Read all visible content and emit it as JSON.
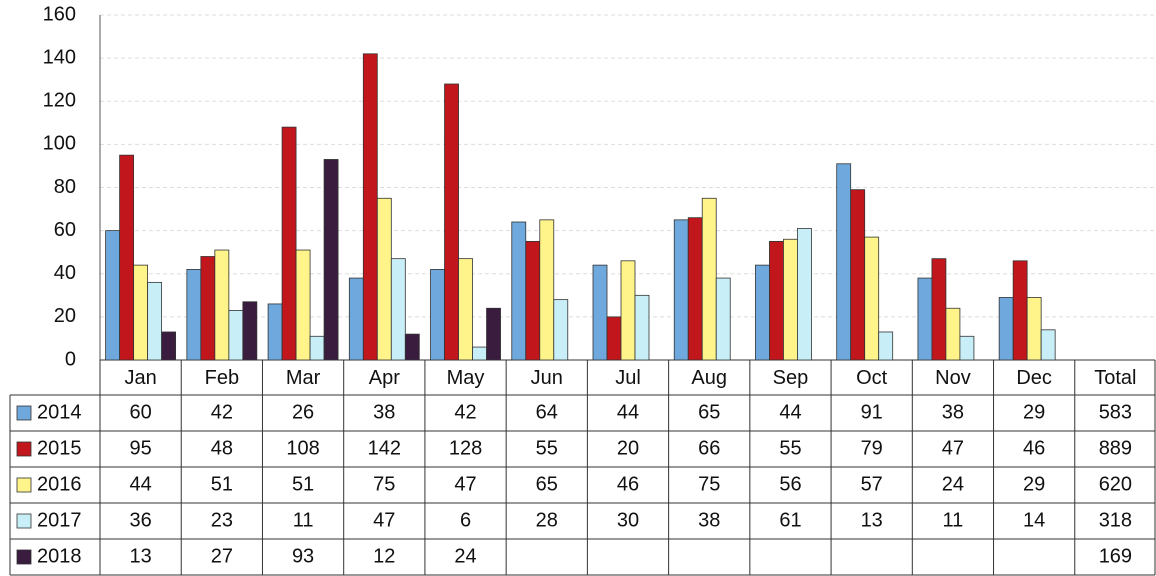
{
  "chart_data": {
    "type": "bar",
    "categories": [
      "Jan",
      "Feb",
      "Mar",
      "Apr",
      "May",
      "Jun",
      "Jul",
      "Aug",
      "Sep",
      "Oct",
      "Nov",
      "Dec"
    ],
    "total_label": "Total",
    "series": [
      {
        "name": "2014",
        "color": "#6fa8dc",
        "values": [
          60,
          42,
          26,
          38,
          42,
          64,
          44,
          65,
          44,
          91,
          38,
          29
        ],
        "total": 583
      },
      {
        "name": "2015",
        "color": "#c0161c",
        "values": [
          95,
          48,
          108,
          142,
          128,
          55,
          20,
          66,
          55,
          79,
          47,
          46
        ],
        "total": 889
      },
      {
        "name": "2016",
        "color": "#fff48a",
        "values": [
          44,
          51,
          51,
          75,
          47,
          65,
          46,
          75,
          56,
          57,
          24,
          29
        ],
        "total": 620
      },
      {
        "name": "2017",
        "color": "#c8eef7",
        "values": [
          36,
          23,
          11,
          47,
          6,
          28,
          30,
          38,
          61,
          13,
          11,
          14
        ],
        "total": 318
      },
      {
        "name": "2018",
        "color": "#3a1c3f",
        "values": [
          13,
          27,
          93,
          12,
          24,
          null,
          null,
          null,
          null,
          null,
          null,
          null
        ],
        "total": 169
      }
    ],
    "ylim": [
      0,
      160
    ],
    "yticks": [
      0,
      20,
      40,
      60,
      80,
      100,
      120,
      140,
      160
    ],
    "grid": true
  }
}
